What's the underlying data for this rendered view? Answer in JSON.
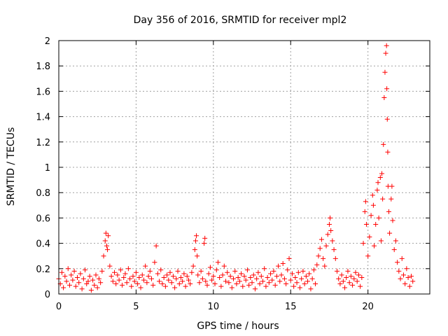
{
  "chart_data": {
    "type": "scatter",
    "title": "Day 356 of 2016, SRMTID for receiver mpl2",
    "xlabel": "GPS time / hours",
    "ylabel": "SRMTID / TECUs",
    "xlim": [
      0,
      24
    ],
    "ylim": [
      0,
      2
    ],
    "xticks": [
      0,
      5,
      10,
      15,
      20
    ],
    "yticks": [
      0,
      0.2,
      0.4,
      0.6,
      0.8,
      1,
      1.2,
      1.4,
      1.6,
      1.8,
      2
    ],
    "grid": true,
    "marker": "+",
    "series": [
      {
        "name": "SRMTID",
        "color": "#ff0000",
        "points": [
          [
            0.0,
            0.12
          ],
          [
            0.1,
            0.08
          ],
          [
            0.2,
            0.17
          ],
          [
            0.3,
            0.05
          ],
          [
            0.4,
            0.14
          ],
          [
            0.5,
            0.1
          ],
          [
            0.6,
            0.2
          ],
          [
            0.7,
            0.07
          ],
          [
            0.8,
            0.15
          ],
          [
            0.9,
            0.11
          ],
          [
            1.0,
            0.18
          ],
          [
            1.1,
            0.06
          ],
          [
            1.2,
            0.13
          ],
          [
            1.3,
            0.09
          ],
          [
            1.4,
            0.16
          ],
          [
            1.5,
            0.04
          ],
          [
            1.6,
            0.12
          ],
          [
            1.7,
            0.19
          ],
          [
            1.8,
            0.08
          ],
          [
            1.9,
            0.1
          ],
          [
            2.0,
            0.14
          ],
          [
            2.1,
            0.03
          ],
          [
            2.2,
            0.11
          ],
          [
            2.3,
            0.07
          ],
          [
            2.4,
            0.15
          ],
          [
            2.5,
            0.05
          ],
          [
            2.6,
            0.12
          ],
          [
            2.7,
            0.09
          ],
          [
            2.8,
            0.18
          ],
          [
            2.9,
            0.3
          ],
          [
            3.0,
            0.42
          ],
          [
            3.05,
            0.48
          ],
          [
            3.1,
            0.38
          ],
          [
            3.15,
            0.35
          ],
          [
            3.2,
            0.46
          ],
          [
            3.3,
            0.22
          ],
          [
            3.4,
            0.14
          ],
          [
            3.5,
            0.1
          ],
          [
            3.6,
            0.17
          ],
          [
            3.7,
            0.08
          ],
          [
            3.8,
            0.15
          ],
          [
            3.9,
            0.11
          ],
          [
            4.0,
            0.19
          ],
          [
            4.1,
            0.07
          ],
          [
            4.2,
            0.13
          ],
          [
            4.3,
            0.16
          ],
          [
            4.4,
            0.09
          ],
          [
            4.5,
            0.2
          ],
          [
            4.6,
            0.12
          ],
          [
            4.7,
            0.06
          ],
          [
            4.8,
            0.14
          ],
          [
            4.9,
            0.1
          ],
          [
            5.0,
            0.17
          ],
          [
            5.1,
            0.08
          ],
          [
            5.2,
            0.13
          ],
          [
            5.3,
            0.05
          ],
          [
            5.4,
            0.15
          ],
          [
            5.5,
            0.11
          ],
          [
            5.6,
            0.22
          ],
          [
            5.7,
            0.09
          ],
          [
            5.8,
            0.14
          ],
          [
            5.9,
            0.18
          ],
          [
            6.0,
            0.12
          ],
          [
            6.1,
            0.07
          ],
          [
            6.2,
            0.25
          ],
          [
            6.3,
            0.38
          ],
          [
            6.4,
            0.16
          ],
          [
            6.5,
            0.1
          ],
          [
            6.6,
            0.19
          ],
          [
            6.7,
            0.08
          ],
          [
            6.8,
            0.13
          ],
          [
            6.9,
            0.06
          ],
          [
            7.0,
            0.15
          ],
          [
            7.1,
            0.11
          ],
          [
            7.2,
            0.17
          ],
          [
            7.3,
            0.09
          ],
          [
            7.4,
            0.14
          ],
          [
            7.5,
            0.05
          ],
          [
            7.6,
            0.12
          ],
          [
            7.7,
            0.18
          ],
          [
            7.8,
            0.08
          ],
          [
            7.9,
            0.13
          ],
          [
            8.0,
            0.1
          ],
          [
            8.1,
            0.16
          ],
          [
            8.2,
            0.06
          ],
          [
            8.3,
            0.14
          ],
          [
            8.4,
            0.11
          ],
          [
            8.5,
            0.08
          ],
          [
            8.6,
            0.17
          ],
          [
            8.7,
            0.22
          ],
          [
            8.8,
            0.35
          ],
          [
            8.85,
            0.42
          ],
          [
            8.9,
            0.46
          ],
          [
            8.95,
            0.3
          ],
          [
            9.0,
            0.15
          ],
          [
            9.1,
            0.09
          ],
          [
            9.2,
            0.18
          ],
          [
            9.3,
            0.12
          ],
          [
            9.4,
            0.4
          ],
          [
            9.45,
            0.44
          ],
          [
            9.5,
            0.1
          ],
          [
            9.6,
            0.07
          ],
          [
            9.7,
            0.16
          ],
          [
            9.8,
            0.21
          ],
          [
            9.9,
            0.11
          ],
          [
            10.0,
            0.14
          ],
          [
            10.1,
            0.08
          ],
          [
            10.2,
            0.19
          ],
          [
            10.3,
            0.25
          ],
          [
            10.4,
            0.13
          ],
          [
            10.5,
            0.06
          ],
          [
            10.6,
            0.15
          ],
          [
            10.7,
            0.22
          ],
          [
            10.8,
            0.1
          ],
          [
            10.9,
            0.17
          ],
          [
            11.0,
            0.09
          ],
          [
            11.1,
            0.14
          ],
          [
            11.2,
            0.05
          ],
          [
            11.3,
            0.12
          ],
          [
            11.4,
            0.18
          ],
          [
            11.5,
            0.08
          ],
          [
            11.6,
            0.13
          ],
          [
            11.7,
            0.1
          ],
          [
            11.8,
            0.16
          ],
          [
            11.9,
            0.06
          ],
          [
            12.0,
            0.14
          ],
          [
            12.1,
            0.11
          ],
          [
            12.2,
            0.19
          ],
          [
            12.3,
            0.07
          ],
          [
            12.4,
            0.13
          ],
          [
            12.5,
            0.09
          ],
          [
            12.6,
            0.15
          ],
          [
            12.7,
            0.04
          ],
          [
            12.8,
            0.12
          ],
          [
            12.9,
            0.17
          ],
          [
            13.0,
            0.08
          ],
          [
            13.1,
            0.14
          ],
          [
            13.2,
            0.1
          ],
          [
            13.3,
            0.2
          ],
          [
            13.4,
            0.06
          ],
          [
            13.5,
            0.13
          ],
          [
            13.6,
            0.09
          ],
          [
            13.7,
            0.16
          ],
          [
            13.8,
            0.11
          ],
          [
            13.9,
            0.18
          ],
          [
            14.0,
            0.07
          ],
          [
            14.1,
            0.14
          ],
          [
            14.2,
            0.22
          ],
          [
            14.3,
            0.1
          ],
          [
            14.4,
            0.15
          ],
          [
            14.5,
            0.24
          ],
          [
            14.6,
            0.12
          ],
          [
            14.7,
            0.08
          ],
          [
            14.8,
            0.19
          ],
          [
            14.9,
            0.28
          ],
          [
            15.0,
            0.11
          ],
          [
            15.1,
            0.16
          ],
          [
            15.2,
            0.06
          ],
          [
            15.3,
            0.13
          ],
          [
            15.4,
            0.09
          ],
          [
            15.5,
            0.17
          ],
          [
            15.6,
            0.05
          ],
          [
            15.7,
            0.12
          ],
          [
            15.8,
            0.18
          ],
          [
            15.9,
            0.08
          ],
          [
            16.0,
            0.14
          ],
          [
            16.1,
            0.1
          ],
          [
            16.2,
            0.16
          ],
          [
            16.3,
            0.04
          ],
          [
            16.4,
            0.12
          ],
          [
            16.5,
            0.19
          ],
          [
            16.6,
            0.08
          ],
          [
            16.7,
            0.23
          ],
          [
            16.8,
            0.3
          ],
          [
            16.9,
            0.36
          ],
          [
            17.0,
            0.43
          ],
          [
            17.1,
            0.28
          ],
          [
            17.2,
            0.22
          ],
          [
            17.3,
            0.38
          ],
          [
            17.4,
            0.47
          ],
          [
            17.5,
            0.55
          ],
          [
            17.55,
            0.6
          ],
          [
            17.6,
            0.5
          ],
          [
            17.7,
            0.42
          ],
          [
            17.8,
            0.35
          ],
          [
            17.9,
            0.28
          ],
          [
            18.0,
            0.18
          ],
          [
            18.1,
            0.12
          ],
          [
            18.2,
            0.08
          ],
          [
            18.3,
            0.15
          ],
          [
            18.4,
            0.1
          ],
          [
            18.5,
            0.05
          ],
          [
            18.6,
            0.13
          ],
          [
            18.7,
            0.18
          ],
          [
            18.8,
            0.09
          ],
          [
            18.9,
            0.14
          ],
          [
            19.0,
            0.07
          ],
          [
            19.1,
            0.12
          ],
          [
            19.2,
            0.17
          ],
          [
            19.3,
            0.1
          ],
          [
            19.4,
            0.15
          ],
          [
            19.5,
            0.06
          ],
          [
            19.6,
            0.13
          ],
          [
            19.7,
            0.4
          ],
          [
            19.8,
            0.65
          ],
          [
            19.85,
            0.73
          ],
          [
            19.9,
            0.55
          ],
          [
            20.0,
            0.3
          ],
          [
            20.1,
            0.45
          ],
          [
            20.2,
            0.62
          ],
          [
            20.3,
            0.78
          ],
          [
            20.35,
            0.7
          ],
          [
            20.4,
            0.38
          ],
          [
            20.5,
            0.55
          ],
          [
            20.6,
            0.82
          ],
          [
            20.65,
            0.88
          ],
          [
            20.7,
            0.6
          ],
          [
            20.8,
            0.92
          ],
          [
            20.85,
            0.42
          ],
          [
            20.9,
            0.95
          ],
          [
            20.95,
            0.75
          ],
          [
            21.0,
            1.18
          ],
          [
            21.05,
            1.55
          ],
          [
            21.1,
            1.75
          ],
          [
            21.15,
            1.9
          ],
          [
            21.2,
            1.96
          ],
          [
            21.22,
            1.62
          ],
          [
            21.25,
            1.38
          ],
          [
            21.28,
            1.12
          ],
          [
            21.3,
            0.85
          ],
          [
            21.35,
            0.65
          ],
          [
            21.4,
            0.48
          ],
          [
            21.5,
            0.75
          ],
          [
            21.55,
            0.85
          ],
          [
            21.6,
            0.58
          ],
          [
            21.7,
            0.35
          ],
          [
            21.8,
            0.42
          ],
          [
            21.9,
            0.25
          ],
          [
            22.0,
            0.18
          ],
          [
            22.1,
            0.12
          ],
          [
            22.2,
            0.28
          ],
          [
            22.3,
            0.15
          ],
          [
            22.4,
            0.08
          ],
          [
            22.5,
            0.2
          ],
          [
            22.6,
            0.13
          ],
          [
            22.7,
            0.06
          ],
          [
            22.8,
            0.14
          ],
          [
            22.9,
            0.1
          ]
        ]
      }
    ]
  }
}
